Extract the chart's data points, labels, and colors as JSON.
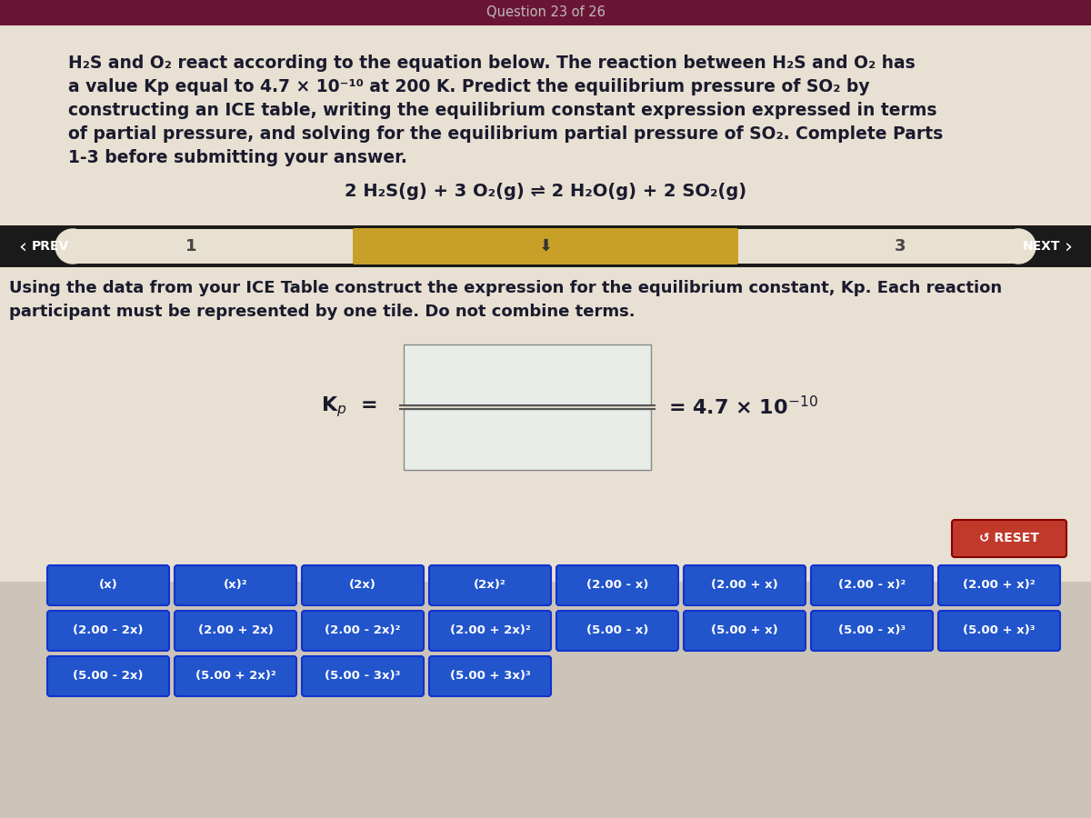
{
  "title_bar_color": "#6b1535",
  "title_bar_text": "Question 23 of 26",
  "title_bar_text_color": "#bbbbbb",
  "bg_color_top": "#e8e0d4",
  "bg_color_bottom": "#d0c8bc",
  "main_text_color": "#1a1a2e",
  "paragraph_lines": [
    "H₂S and O₂ react according to the equation below. The reaction between H₂S and O₂ has",
    "a value Kp equal to 4.7 × 10⁻¹⁰ at 200 K. Predict the equilibrium pressure of SO₂ by",
    "constructing an ICE table, writing the equilibrium constant expression expressed in terms",
    "of partial pressure, and solving for the equilibrium partial pressure of SO₂. Complete Parts",
    "1-3 before submitting your answer."
  ],
  "equation": "2 H₂S(g) + 3 O₂(g) ⇌ 2 H₂O(g) + 2 SO₂(g)",
  "nav_bg": "#1a1a1a",
  "nav_track_color": "#e8e0d0",
  "tab_active_color": "#c8a028",
  "tab_inactive_color": "#b8b0a0",
  "nav_text_color": "#ffffff",
  "instruction_text_line1": "Using the data from your ICE Table construct the expression for the equilibrium constant, Kp. Each reaction",
  "instruction_text_line2": "participant must be represented by one tile. Do not combine terms.",
  "fraction_box_fill": "#e8ede8",
  "fraction_box_border": "#888888",
  "reset_btn_color": "#c0392b",
  "reset_btn_text": "↺ RESET",
  "tile_bg_color": "#2255cc",
  "tile_text_color": "#ffffff",
  "tiles_row1": [
    "(x)",
    "(x)²",
    "(2x)",
    "(2x)²",
    "(2.00 - x)",
    "(2.00 + x)",
    "(2.00 - x)²",
    "(2.00 + x)²"
  ],
  "tiles_row2": [
    "(2.00 - 2x)",
    "(2.00 + 2x)",
    "(2.00 - 2x)²",
    "(2.00 + 2x)²",
    "(5.00 - x)",
    "(5.00 + x)",
    "(5.00 - x)³",
    "(5.00 + x)³"
  ],
  "tiles_row3": [
    "(5.00 - 2x)",
    "(5.00 + 2x)²",
    "(5.00 - 3x)³",
    "(5.00 + 3x)³"
  ]
}
